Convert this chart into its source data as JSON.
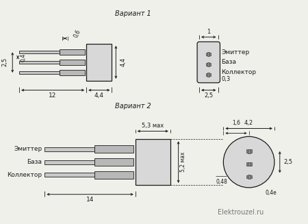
{
  "bg": "#f0f0eb",
  "lc": "#1a1a1a",
  "tc": "#1a1a1a",
  "watermark": "Elektrouzel.ru",
  "v1_label": "Вариант 1",
  "v2_label": "Вариант 2",
  "labels_v1": [
    "Эмиттер",
    "База",
    "Коллектор"
  ],
  "labels_v2": [
    "Эмиттер",
    "База",
    "Коллектор"
  ],
  "dim_06": "0,6",
  "dim_04": "0,4",
  "dim_25a": "2,5",
  "dim_12": "12",
  "dim_44a": "4,4",
  "dim_44b": "4,4",
  "dim_1": "1",
  "dim_25b": "2,5",
  "dim_03": "0,3",
  "dim_53": "5,3 мах",
  "dim_52": "5,2 мах",
  "dim_14": "14",
  "dim_42": "4,2",
  "dim_16": "1,6",
  "dim_048": "0,48",
  "dim_25c": "2,5",
  "dim_04e": "0,4е"
}
